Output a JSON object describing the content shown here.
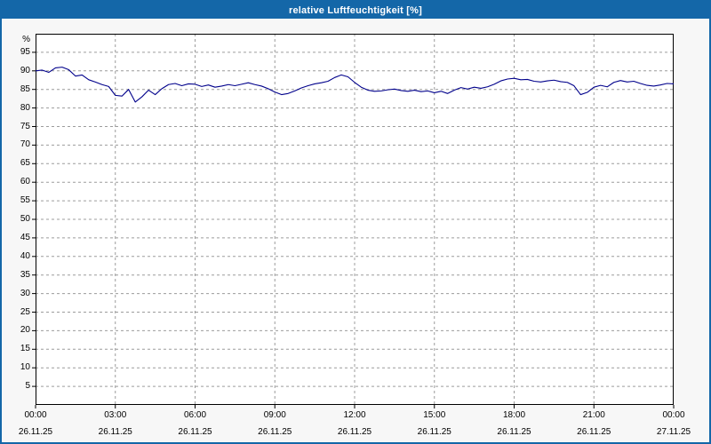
{
  "window": {
    "title": "relative Luftfeuchtigkeit [%]"
  },
  "colors": {
    "accent": "#1467a8",
    "line": "#00008b",
    "grid": "#9c9c9c",
    "axis": "#000000",
    "plot_bg": "#ffffff",
    "page_bg": "#f7f7f7"
  },
  "chart_data": {
    "type": "line",
    "title": "relative Luftfeuchtigkeit [%]",
    "xlabel": "",
    "ylabel": "%",
    "ylim": [
      0,
      100
    ],
    "grid": true,
    "legend_position": "none",
    "y_ticks": [
      5,
      10,
      15,
      20,
      25,
      30,
      35,
      40,
      45,
      50,
      55,
      60,
      65,
      70,
      75,
      80,
      85,
      90,
      95
    ],
    "x_tick_labels": [
      "00:00",
      "03:00",
      "06:00",
      "09:00",
      "12:00",
      "15:00",
      "18:00",
      "21:00",
      "00:00"
    ],
    "x_date_labels": [
      "26.11.25",
      "26.11.25",
      "26.11.25",
      "26.11.25",
      "26.11.25",
      "26.11.25",
      "26.11.25",
      "26.11.25",
      "27.11.25"
    ],
    "x_start": "00:00",
    "x_end": "24:00",
    "interval_minutes": 15,
    "series": [
      {
        "name": "relative Luftfeuchtigkeit",
        "unit": "%",
        "values": [
          90.0,
          90.2,
          89.6,
          90.8,
          91.0,
          90.3,
          88.6,
          88.9,
          87.6,
          87.0,
          86.3,
          85.8,
          83.4,
          83.2,
          85.0,
          81.6,
          83.0,
          84.8,
          83.6,
          85.2,
          86.3,
          86.6,
          86.0,
          86.5,
          86.4,
          85.8,
          86.2,
          85.6,
          85.9,
          86.3,
          86.0,
          86.4,
          86.8,
          86.3,
          85.9,
          85.2,
          84.3,
          83.6,
          83.9,
          84.6,
          85.4,
          86.0,
          86.5,
          86.8,
          87.2,
          88.2,
          88.9,
          88.4,
          86.9,
          85.6,
          84.8,
          84.5,
          84.6,
          84.9,
          85.1,
          84.7,
          84.5,
          84.8,
          84.4,
          84.6,
          84.1,
          84.5,
          83.9,
          84.8,
          85.5,
          85.1,
          85.6,
          85.3,
          85.7,
          86.4,
          87.3,
          87.8,
          88.0,
          87.6,
          87.7,
          87.2,
          87.0,
          87.3,
          87.5,
          87.1,
          86.9,
          86.0,
          83.6,
          84.2,
          85.6,
          86.1,
          85.7,
          86.9,
          87.4,
          87.0,
          87.2,
          86.6,
          86.1,
          85.9,
          86.2,
          86.6,
          86.5
        ]
      }
    ]
  }
}
